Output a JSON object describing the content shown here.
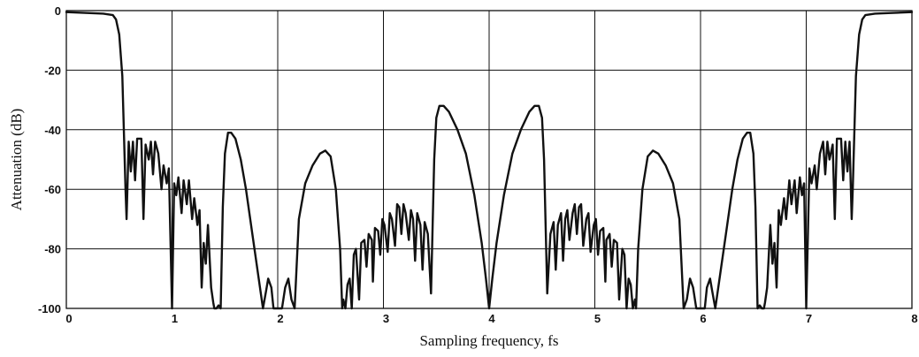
{
  "chart_data": {
    "type": "line",
    "title": "",
    "xlabel": "Sampling frequency, fs",
    "ylabel": "Attenuation (dB)",
    "xlim": [
      0,
      8
    ],
    "ylim": [
      -100,
      0
    ],
    "x_ticks": [
      0,
      1,
      2,
      3,
      4,
      5,
      6,
      7,
      8
    ],
    "x_tick_labels": [
      "0",
      "1",
      "2",
      "3",
      "4",
      "5",
      "6",
      "7",
      "8"
    ],
    "y_ticks": [
      0,
      -20,
      -40,
      -60,
      -80,
      -100
    ],
    "y_tick_labels": [
      "0",
      "-20",
      "-40",
      "-60",
      "-80",
      "-100"
    ],
    "grid": true,
    "series": [
      {
        "name": "",
        "points": [
          [
            0.0,
            -0.5
          ],
          [
            0.2,
            -0.8
          ],
          [
            0.35,
            -1.0
          ],
          [
            0.44,
            -1.5
          ],
          [
            0.47,
            -3
          ],
          [
            0.5,
            -8
          ],
          [
            0.53,
            -22
          ],
          [
            0.56,
            -60
          ],
          [
            0.57,
            -70
          ],
          [
            0.59,
            -44
          ],
          [
            0.61,
            -54
          ],
          [
            0.63,
            -44
          ],
          [
            0.65,
            -57
          ],
          [
            0.67,
            -43
          ],
          [
            0.71,
            -43
          ],
          [
            0.73,
            -70
          ],
          [
            0.75,
            -45
          ],
          [
            0.78,
            -50
          ],
          [
            0.8,
            -44
          ],
          [
            0.82,
            -55
          ],
          [
            0.84,
            -44
          ],
          [
            0.87,
            -48
          ],
          [
            0.9,
            -60
          ],
          [
            0.92,
            -52
          ],
          [
            0.95,
            -58
          ],
          [
            0.97,
            -53
          ],
          [
            1.0,
            -100
          ],
          [
            1.02,
            -58
          ],
          [
            1.04,
            -62
          ],
          [
            1.06,
            -56
          ],
          [
            1.09,
            -68
          ],
          [
            1.11,
            -57
          ],
          [
            1.14,
            -65
          ],
          [
            1.16,
            -57
          ],
          [
            1.19,
            -70
          ],
          [
            1.21,
            -63
          ],
          [
            1.24,
            -72
          ],
          [
            1.26,
            -67
          ],
          [
            1.28,
            -93
          ],
          [
            1.3,
            -78
          ],
          [
            1.32,
            -85
          ],
          [
            1.34,
            -72
          ],
          [
            1.37,
            -93
          ],
          [
            1.39,
            -98
          ],
          [
            1.4,
            -100
          ],
          [
            1.42,
            -100
          ],
          [
            1.44,
            -99
          ],
          [
            1.46,
            -100
          ],
          [
            1.48,
            -66
          ],
          [
            1.5,
            -48
          ],
          [
            1.53,
            -41
          ],
          [
            1.56,
            -41
          ],
          [
            1.6,
            -43
          ],
          [
            1.65,
            -50
          ],
          [
            1.7,
            -60
          ],
          [
            1.76,
            -75
          ],
          [
            1.82,
            -90
          ],
          [
            1.86,
            -100
          ],
          [
            1.89,
            -94
          ],
          [
            1.91,
            -90
          ],
          [
            1.94,
            -93
          ],
          [
            1.96,
            -100
          ],
          [
            2.04,
            -100
          ],
          [
            2.07,
            -93
          ],
          [
            2.1,
            -90
          ],
          [
            2.13,
            -97
          ],
          [
            2.16,
            -100
          ],
          [
            2.2,
            -70
          ],
          [
            2.26,
            -58
          ],
          [
            2.33,
            -52
          ],
          [
            2.4,
            -48
          ],
          [
            2.45,
            -47
          ],
          [
            2.5,
            -49
          ],
          [
            2.55,
            -60
          ],
          [
            2.59,
            -80
          ],
          [
            2.61,
            -100
          ],
          [
            2.62,
            -97
          ],
          [
            2.64,
            -100
          ],
          [
            2.66,
            -92
          ],
          [
            2.68,
            -90
          ],
          [
            2.7,
            -100
          ],
          [
            2.72,
            -82
          ],
          [
            2.74,
            -80
          ],
          [
            2.77,
            -97
          ],
          [
            2.79,
            -78
          ],
          [
            2.82,
            -77
          ],
          [
            2.84,
            -86
          ],
          [
            2.86,
            -75
          ],
          [
            2.89,
            -77
          ],
          [
            2.9,
            -91
          ],
          [
            2.92,
            -73
          ],
          [
            2.95,
            -74
          ],
          [
            2.97,
            -82
          ],
          [
            2.99,
            -70
          ],
          [
            3.01,
            -72
          ],
          [
            3.04,
            -81
          ],
          [
            3.06,
            -68
          ],
          [
            3.08,
            -70
          ],
          [
            3.11,
            -79
          ],
          [
            3.13,
            -65
          ],
          [
            3.15,
            -66
          ],
          [
            3.17,
            -75
          ],
          [
            3.19,
            -65
          ],
          [
            3.21,
            -68
          ],
          [
            3.24,
            -77
          ],
          [
            3.26,
            -67
          ],
          [
            3.28,
            -70
          ],
          [
            3.3,
            -84
          ],
          [
            3.32,
            -68
          ],
          [
            3.35,
            -72
          ],
          [
            3.37,
            -87
          ],
          [
            3.39,
            -71
          ],
          [
            3.42,
            -75
          ],
          [
            3.45,
            -95
          ],
          [
            3.46,
            -80
          ],
          [
            3.48,
            -50
          ],
          [
            3.5,
            -36
          ],
          [
            3.53,
            -32
          ],
          [
            3.57,
            -32
          ],
          [
            3.62,
            -34
          ],
          [
            3.7,
            -40
          ],
          [
            3.78,
            -48
          ],
          [
            3.86,
            -62
          ],
          [
            3.93,
            -78
          ],
          [
            3.97,
            -90
          ],
          [
            4.0,
            -100
          ],
          [
            4.03,
            -90
          ],
          [
            4.07,
            -78
          ],
          [
            4.14,
            -62
          ],
          [
            4.22,
            -48
          ],
          [
            4.3,
            -40
          ],
          [
            4.38,
            -34
          ],
          [
            4.43,
            -32
          ],
          [
            4.47,
            -32
          ],
          [
            4.5,
            -36
          ],
          [
            4.52,
            -50
          ],
          [
            4.54,
            -80
          ],
          [
            4.55,
            -95
          ],
          [
            4.58,
            -75
          ],
          [
            4.61,
            -71
          ],
          [
            4.63,
            -87
          ],
          [
            4.65,
            -72
          ],
          [
            4.68,
            -68
          ],
          [
            4.7,
            -84
          ],
          [
            4.72,
            -70
          ],
          [
            4.74,
            -67
          ],
          [
            4.76,
            -77
          ],
          [
            4.79,
            -68
          ],
          [
            4.81,
            -65
          ],
          [
            4.83,
            -75
          ],
          [
            4.85,
            -66
          ],
          [
            4.87,
            -65
          ],
          [
            4.89,
            -79
          ],
          [
            4.92,
            -70
          ],
          [
            4.94,
            -68
          ],
          [
            4.96,
            -81
          ],
          [
            4.99,
            -72
          ],
          [
            5.01,
            -70
          ],
          [
            5.03,
            -82
          ],
          [
            5.05,
            -74
          ],
          [
            5.08,
            -73
          ],
          [
            5.1,
            -91
          ],
          [
            5.11,
            -77
          ],
          [
            5.14,
            -75
          ],
          [
            5.16,
            -86
          ],
          [
            5.18,
            -77
          ],
          [
            5.21,
            -78
          ],
          [
            5.23,
            -97
          ],
          [
            5.26,
            -80
          ],
          [
            5.28,
            -82
          ],
          [
            5.3,
            -100
          ],
          [
            5.32,
            -90
          ],
          [
            5.34,
            -92
          ],
          [
            5.36,
            -100
          ],
          [
            5.38,
            -97
          ],
          [
            5.39,
            -100
          ],
          [
            5.41,
            -80
          ],
          [
            5.45,
            -60
          ],
          [
            5.5,
            -49
          ],
          [
            5.55,
            -47
          ],
          [
            5.6,
            -48
          ],
          [
            5.67,
            -52
          ],
          [
            5.74,
            -58
          ],
          [
            5.8,
            -70
          ],
          [
            5.84,
            -100
          ],
          [
            5.87,
            -97
          ],
          [
            5.9,
            -90
          ],
          [
            5.93,
            -93
          ],
          [
            5.96,
            -100
          ],
          [
            6.04,
            -100
          ],
          [
            6.06,
            -93
          ],
          [
            6.09,
            -90
          ],
          [
            6.11,
            -94
          ],
          [
            6.14,
            -100
          ],
          [
            6.18,
            -90
          ],
          [
            6.24,
            -75
          ],
          [
            6.3,
            -60
          ],
          [
            6.35,
            -50
          ],
          [
            6.4,
            -43
          ],
          [
            6.44,
            -41
          ],
          [
            6.47,
            -41
          ],
          [
            6.5,
            -48
          ],
          [
            6.52,
            -66
          ],
          [
            6.54,
            -100
          ],
          [
            6.56,
            -99
          ],
          [
            6.58,
            -100
          ],
          [
            6.6,
            -100
          ],
          [
            6.61,
            -98
          ],
          [
            6.63,
            -93
          ],
          [
            6.66,
            -72
          ],
          [
            6.68,
            -85
          ],
          [
            6.7,
            -78
          ],
          [
            6.72,
            -93
          ],
          [
            6.74,
            -67
          ],
          [
            6.76,
            -72
          ],
          [
            6.79,
            -63
          ],
          [
            6.81,
            -70
          ],
          [
            6.84,
            -57
          ],
          [
            6.86,
            -65
          ],
          [
            6.89,
            -57
          ],
          [
            6.91,
            -68
          ],
          [
            6.94,
            -56
          ],
          [
            6.96,
            -62
          ],
          [
            6.98,
            -58
          ],
          [
            7.0,
            -100
          ],
          [
            7.03,
            -53
          ],
          [
            7.05,
            -58
          ],
          [
            7.08,
            -52
          ],
          [
            7.1,
            -60
          ],
          [
            7.13,
            -48
          ],
          [
            7.16,
            -44
          ],
          [
            7.18,
            -55
          ],
          [
            7.2,
            -44
          ],
          [
            7.22,
            -50
          ],
          [
            7.25,
            -45
          ],
          [
            7.27,
            -70
          ],
          [
            7.29,
            -43
          ],
          [
            7.33,
            -43
          ],
          [
            7.35,
            -57
          ],
          [
            7.37,
            -44
          ],
          [
            7.39,
            -54
          ],
          [
            7.41,
            -44
          ],
          [
            7.43,
            -70
          ],
          [
            7.44,
            -60
          ],
          [
            7.47,
            -22
          ],
          [
            7.5,
            -8
          ],
          [
            7.53,
            -3
          ],
          [
            7.56,
            -1.5
          ],
          [
            7.65,
            -1.0
          ],
          [
            7.8,
            -0.8
          ],
          [
            8.0,
            -0.5
          ]
        ]
      }
    ]
  }
}
